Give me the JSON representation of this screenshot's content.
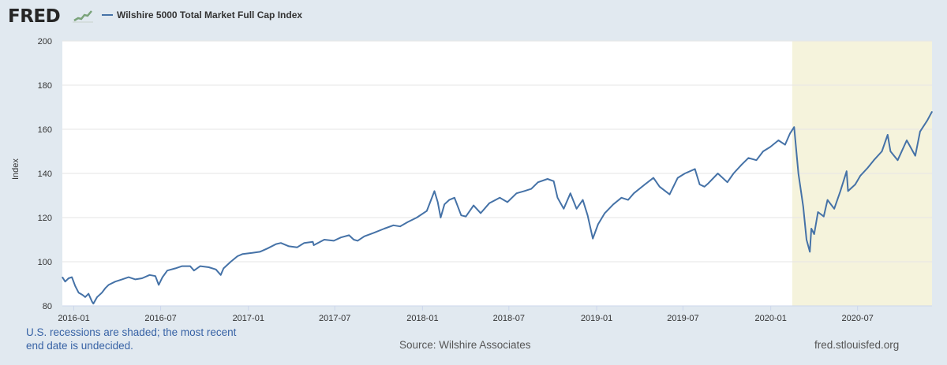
{
  "header": {
    "logo_text": "FRED",
    "logo_graph_icon": "trend-chart-icon"
  },
  "footer": {
    "recession_note_line1": "U.S. recessions are shaded; the most recent",
    "recession_note_line2": "end date is undecided.",
    "source": "Source: Wilshire Associates",
    "site": "fred.stlouisfed.org"
  },
  "chart_data": {
    "type": "line",
    "title": "",
    "xlabel": "",
    "ylabel": "Index",
    "ylim": [
      80,
      200
    ],
    "xlim": [
      "2015-12-08",
      "2020-12-04"
    ],
    "yticks": [
      80,
      100,
      120,
      140,
      160,
      180,
      200
    ],
    "xticks": [
      "2016-01",
      "2016-07",
      "2017-01",
      "2017-07",
      "2018-01",
      "2018-07",
      "2019-01",
      "2019-07",
      "2020-01",
      "2020-07"
    ],
    "grid": true,
    "legend_position": "top-left",
    "colors": {
      "line": "#4572a7",
      "recession_shade": "#f5f3dc",
      "plot_bg": "#ffffff",
      "grid": "#e6e6e6"
    },
    "recessions": [
      {
        "start": "2020-02-15",
        "end": "2020-12-04"
      }
    ],
    "series": [
      {
        "name": "Wilshire 5000 Total Market Full Cap Index",
        "points": [
          [
            "2015-12-08",
            93
          ],
          [
            "2015-12-14",
            91
          ],
          [
            "2015-12-21",
            92.5
          ],
          [
            "2015-12-28",
            93
          ],
          [
            "2016-01-04",
            89
          ],
          [
            "2016-01-11",
            86
          ],
          [
            "2016-01-19",
            85
          ],
          [
            "2016-01-25",
            84
          ],
          [
            "2016-02-01",
            85.5
          ],
          [
            "2016-02-08",
            82
          ],
          [
            "2016-02-11",
            81
          ],
          [
            "2016-02-19",
            84
          ],
          [
            "2016-02-29",
            86
          ],
          [
            "2016-03-07",
            88
          ],
          [
            "2016-03-14",
            89.5
          ],
          [
            "2016-03-28",
            91
          ],
          [
            "2016-04-11",
            92
          ],
          [
            "2016-04-25",
            93
          ],
          [
            "2016-05-09",
            92
          ],
          [
            "2016-05-23",
            92.5
          ],
          [
            "2016-06-08",
            94
          ],
          [
            "2016-06-20",
            93.5
          ],
          [
            "2016-06-27",
            89.5
          ],
          [
            "2016-07-05",
            93
          ],
          [
            "2016-07-15",
            96
          ],
          [
            "2016-08-01",
            97
          ],
          [
            "2016-08-15",
            98
          ],
          [
            "2016-09-01",
            98
          ],
          [
            "2016-09-09",
            96
          ],
          [
            "2016-09-22",
            98
          ],
          [
            "2016-10-10",
            97.5
          ],
          [
            "2016-10-25",
            96.5
          ],
          [
            "2016-11-04",
            94
          ],
          [
            "2016-11-10",
            97
          ],
          [
            "2016-11-25",
            100
          ],
          [
            "2016-12-09",
            102.5
          ],
          [
            "2016-12-20",
            103.5
          ],
          [
            "2017-01-09",
            104
          ],
          [
            "2017-01-25",
            104.5
          ],
          [
            "2017-02-10",
            106
          ],
          [
            "2017-02-28",
            108
          ],
          [
            "2017-03-10",
            108.5
          ],
          [
            "2017-03-27",
            107
          ],
          [
            "2017-04-13",
            106.5
          ],
          [
            "2017-04-28",
            108.5
          ],
          [
            "2017-05-16",
            109
          ],
          [
            "2017-05-18",
            107.5
          ],
          [
            "2017-06-09",
            110
          ],
          [
            "2017-06-29",
            109.5
          ],
          [
            "2017-07-14",
            111
          ],
          [
            "2017-07-31",
            112
          ],
          [
            "2017-08-10",
            110
          ],
          [
            "2017-08-18",
            109.5
          ],
          [
            "2017-09-01",
            111.5
          ],
          [
            "2017-09-20",
            113
          ],
          [
            "2017-10-13",
            115
          ],
          [
            "2017-11-01",
            116.5
          ],
          [
            "2017-11-15",
            116
          ],
          [
            "2017-12-01",
            118
          ],
          [
            "2017-12-20",
            120
          ],
          [
            "2018-01-10",
            123
          ],
          [
            "2018-01-26",
            132
          ],
          [
            "2018-02-02",
            127
          ],
          [
            "2018-02-08",
            120
          ],
          [
            "2018-02-16",
            126
          ],
          [
            "2018-02-26",
            128
          ],
          [
            "2018-03-09",
            129
          ],
          [
            "2018-03-23",
            121
          ],
          [
            "2018-04-02",
            120.5
          ],
          [
            "2018-04-18",
            125.5
          ],
          [
            "2018-05-03",
            122
          ],
          [
            "2018-05-21",
            126.5
          ],
          [
            "2018-06-12",
            129
          ],
          [
            "2018-06-28",
            127
          ],
          [
            "2018-07-17",
            131
          ],
          [
            "2018-08-02",
            132
          ],
          [
            "2018-08-17",
            133
          ],
          [
            "2018-08-31",
            136
          ],
          [
            "2018-09-20",
            137.5
          ],
          [
            "2018-10-03",
            136.5
          ],
          [
            "2018-10-11",
            129
          ],
          [
            "2018-10-24",
            124
          ],
          [
            "2018-11-07",
            131
          ],
          [
            "2018-11-20",
            124
          ],
          [
            "2018-12-03",
            128
          ],
          [
            "2018-12-13",
            121
          ],
          [
            "2018-12-24",
            110.5
          ],
          [
            "2019-01-04",
            117
          ],
          [
            "2019-01-18",
            122
          ],
          [
            "2019-02-05",
            126
          ],
          [
            "2019-02-22",
            129
          ],
          [
            "2019-03-08",
            128
          ],
          [
            "2019-03-20",
            131
          ],
          [
            "2019-04-12",
            135
          ],
          [
            "2019-04-30",
            138
          ],
          [
            "2019-05-13",
            134
          ],
          [
            "2019-06-03",
            130.5
          ],
          [
            "2019-06-20",
            138
          ],
          [
            "2019-07-05",
            140
          ],
          [
            "2019-07-26",
            142
          ],
          [
            "2019-08-05",
            135
          ],
          [
            "2019-08-15",
            134
          ],
          [
            "2019-08-23",
            135.5
          ],
          [
            "2019-09-12",
            140
          ],
          [
            "2019-10-02",
            136
          ],
          [
            "2019-10-15",
            140
          ],
          [
            "2019-11-01",
            144
          ],
          [
            "2019-11-15",
            147
          ],
          [
            "2019-12-02",
            146
          ],
          [
            "2019-12-16",
            150
          ],
          [
            "2019-12-31",
            152
          ],
          [
            "2020-01-17",
            155
          ],
          [
            "2020-01-31",
            153
          ],
          [
            "2020-02-10",
            158
          ],
          [
            "2020-02-19",
            161
          ],
          [
            "2020-02-28",
            140
          ],
          [
            "2020-03-09",
            125
          ],
          [
            "2020-03-16",
            110
          ],
          [
            "2020-03-23",
            104.5
          ],
          [
            "2020-03-26",
            115
          ],
          [
            "2020-04-01",
            112.5
          ],
          [
            "2020-04-09",
            122.5
          ],
          [
            "2020-04-21",
            120.5
          ],
          [
            "2020-04-29",
            128
          ],
          [
            "2020-05-13",
            124
          ],
          [
            "2020-05-26",
            132
          ],
          [
            "2020-06-08",
            141
          ],
          [
            "2020-06-11",
            132
          ],
          [
            "2020-06-26",
            135
          ],
          [
            "2020-07-07",
            139
          ],
          [
            "2020-07-22",
            142.5
          ],
          [
            "2020-08-04",
            146
          ],
          [
            "2020-08-21",
            150
          ],
          [
            "2020-09-02",
            157.5
          ],
          [
            "2020-09-08",
            150
          ],
          [
            "2020-09-23",
            146
          ],
          [
            "2020-10-12",
            155
          ],
          [
            "2020-10-30",
            148
          ],
          [
            "2020-11-09",
            159
          ],
          [
            "2020-11-24",
            164
          ],
          [
            "2020-12-04",
            168
          ]
        ]
      }
    ]
  }
}
